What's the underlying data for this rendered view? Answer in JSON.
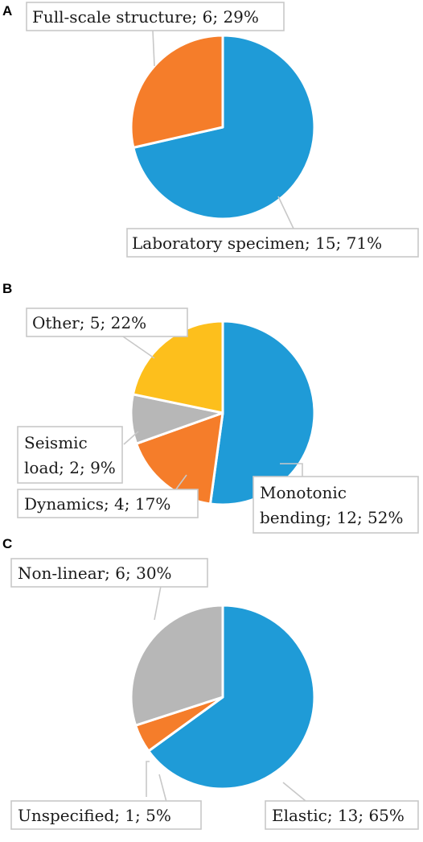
{
  "colors": {
    "blue": "#1f9bd7",
    "orange": "#f57d2a",
    "gray": "#b7b7b7",
    "yellow": "#fdbf1c"
  },
  "chart_data": [
    {
      "type": "pie",
      "panel": "A",
      "slices": [
        {
          "label": "Laboratory specimen",
          "value": 15,
          "percent": 71,
          "color": "#1f9bd7",
          "text": "Laboratory specimen; 15; 71%"
        },
        {
          "label": "Full-scale structure",
          "value": 6,
          "percent": 29,
          "color": "#f57d2a",
          "text": "Full-scale structure; 6; 29%"
        }
      ]
    },
    {
      "type": "pie",
      "panel": "B",
      "slices": [
        {
          "label": "Monotonic bending",
          "value": 12,
          "percent": 52,
          "color": "#1f9bd7",
          "text_lines": [
            "Monotonic",
            "bending; 12; 52%"
          ]
        },
        {
          "label": "Dynamics",
          "value": 4,
          "percent": 17,
          "color": "#f57d2a",
          "text_lines": [
            "Dynamics; 4; 17%"
          ]
        },
        {
          "label": "Seismic load",
          "value": 2,
          "percent": 9,
          "color": "#b7b7b7",
          "text_lines": [
            "Seismic",
            "load; 2; 9%"
          ]
        },
        {
          "label": "Other",
          "value": 5,
          "percent": 22,
          "color": "#fdbf1c",
          "text_lines": [
            "Other; 5; 22%"
          ]
        }
      ]
    },
    {
      "type": "pie",
      "panel": "C",
      "slices": [
        {
          "label": "Elastic",
          "value": 13,
          "percent": 65,
          "color": "#1f9bd7",
          "text": "Elastic; 13; 65%"
        },
        {
          "label": "Unspecified",
          "value": 1,
          "percent": 5,
          "color": "#f57d2a",
          "text": "Unspecified; 1; 5%"
        },
        {
          "label": "Non-linear",
          "value": 6,
          "percent": 30,
          "color": "#b7b7b7",
          "text": "Non-linear; 6; 30%"
        }
      ]
    }
  ]
}
